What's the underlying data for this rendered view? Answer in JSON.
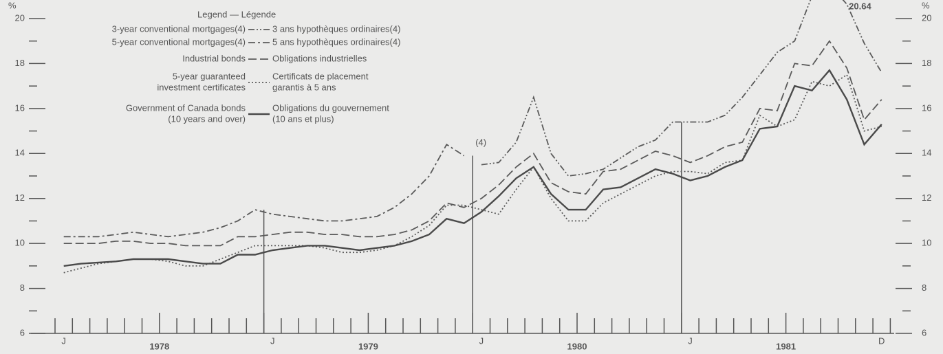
{
  "chart_data": {
    "type": "line",
    "legend_title": "Legend — Légende",
    "y_unit": "%",
    "categories": [
      "J",
      null,
      null,
      null,
      null,
      null,
      null,
      null,
      null,
      null,
      null,
      null,
      "J",
      null,
      null,
      null,
      null,
      null,
      null,
      null,
      null,
      null,
      null,
      null,
      "J",
      null,
      null,
      null,
      null,
      null,
      null,
      null,
      null,
      null,
      null,
      null,
      "J",
      null,
      null,
      null,
      null,
      null,
      null,
      null,
      null,
      null,
      null,
      "D"
    ],
    "x_group_labels": [
      "1978",
      "1979",
      "1980",
      "1981"
    ],
    "annotation": "(4)",
    "ylim": [
      6,
      20
    ],
    "yticks": [
      6,
      8,
      10,
      12,
      14,
      16,
      18,
      20
    ],
    "minor_yticks": [
      7,
      9,
      11,
      13,
      15,
      17,
      19
    ],
    "right_axis": true,
    "series": [
      {
        "name": [
          "3-year conventional mortgages(4)"
        ],
        "name_fr": [
          "3 ans hypothèques ordinaires(4)"
        ],
        "color": "#5a5a5a",
        "style": "dash-dot-dot",
        "values": [
          null,
          null,
          null,
          null,
          null,
          null,
          null,
          null,
          null,
          null,
          null,
          null,
          null,
          null,
          null,
          null,
          null,
          null,
          null,
          null,
          null,
          null,
          null,
          null,
          13.5,
          13.6,
          14.5,
          16.5,
          14.0,
          13.0,
          13.1,
          13.3,
          13.8,
          14.3,
          14.6,
          15.4,
          15.4,
          15.4,
          15.7,
          16.5,
          17.5,
          18.5,
          19.0,
          21.0,
          21.5,
          20.64,
          18.9,
          17.6
        ],
        "value_labels": [
          null,
          null,
          null,
          null,
          null,
          null,
          null,
          null,
          null,
          null,
          null,
          null,
          null,
          null,
          null,
          null,
          null,
          null,
          null,
          null,
          null,
          null,
          null,
          null,
          null,
          null,
          null,
          null,
          null,
          null,
          null,
          null,
          null,
          null,
          null,
          null,
          null,
          null,
          null,
          null,
          null,
          null,
          null,
          null,
          null,
          "20.64",
          null,
          null
        ]
      },
      {
        "name": [
          "5-year conventional mortgages(4)"
        ],
        "name_fr": [
          "5 ans hypothèques ordinaires(4)"
        ],
        "color": "#5a5a5a",
        "style": "dash-dot",
        "values": [
          10.3,
          10.3,
          10.3,
          10.4,
          10.5,
          10.4,
          10.3,
          10.4,
          10.5,
          10.7,
          11.0,
          11.5,
          11.3,
          11.2,
          11.1,
          11.0,
          11.0,
          11.1,
          11.2,
          11.6,
          12.2,
          13.0,
          14.4,
          13.9,
          null,
          null,
          null,
          null,
          null,
          null,
          null,
          null,
          null,
          null,
          null,
          null,
          null,
          null,
          null,
          null,
          null,
          null,
          null,
          null,
          null,
          null,
          null,
          null
        ]
      },
      {
        "name": [
          "Industrial bonds"
        ],
        "name_fr": [
          "Obligations industrielles"
        ],
        "color": "#5a5a5a",
        "style": "dash",
        "values": [
          10.0,
          10.0,
          10.0,
          10.1,
          10.1,
          10.0,
          10.0,
          9.9,
          9.9,
          9.9,
          10.3,
          10.3,
          10.4,
          10.5,
          10.5,
          10.4,
          10.4,
          10.3,
          10.3,
          10.4,
          10.6,
          11.0,
          11.8,
          11.6,
          12.0,
          12.6,
          13.4,
          14.0,
          12.7,
          12.3,
          12.2,
          13.2,
          13.3,
          13.7,
          14.1,
          13.9,
          13.6,
          13.9,
          14.3,
          14.5,
          16.0,
          15.9,
          18.0,
          17.9,
          19.0,
          17.8,
          15.5,
          16.4
        ]
      },
      {
        "name": [
          "5-year guaranteed",
          "investment certificates"
        ],
        "name_fr": [
          "Certificats de placement",
          "garantis à 5 ans"
        ],
        "color": "#5a5a5a",
        "style": "dot",
        "values": [
          8.7,
          8.9,
          9.1,
          9.2,
          9.3,
          9.3,
          9.2,
          9.0,
          9.0,
          9.3,
          9.6,
          9.9,
          9.9,
          9.9,
          9.9,
          9.8,
          9.6,
          9.6,
          9.7,
          9.9,
          10.3,
          10.8,
          11.7,
          11.7,
          11.5,
          11.3,
          12.4,
          13.4,
          12.0,
          11.0,
          11.0,
          11.8,
          12.2,
          12.6,
          13.0,
          13.2,
          13.2,
          13.1,
          13.6,
          13.7,
          15.7,
          15.2,
          15.5,
          17.2,
          17.0,
          17.5,
          15.0,
          15.2
        ]
      },
      {
        "name": [
          "Government of Canada bonds",
          "(10 years and over)"
        ],
        "name_fr": [
          "Obligations du gouvernement",
          "(10 ans et plus)"
        ],
        "color": "#4a4a4a",
        "style": "solid",
        "values": [
          9.0,
          9.1,
          9.15,
          9.2,
          9.3,
          9.3,
          9.3,
          9.2,
          9.1,
          9.1,
          9.5,
          9.5,
          9.7,
          9.8,
          9.9,
          9.9,
          9.8,
          9.7,
          9.8,
          9.9,
          10.1,
          10.4,
          11.1,
          10.9,
          11.4,
          12.1,
          12.9,
          13.4,
          12.2,
          11.5,
          11.5,
          12.4,
          12.5,
          12.9,
          13.3,
          13.1,
          12.8,
          13.0,
          13.4,
          13.7,
          15.1,
          15.2,
          17.0,
          16.8,
          17.7,
          16.4,
          14.4,
          15.3
        ]
      }
    ]
  }
}
